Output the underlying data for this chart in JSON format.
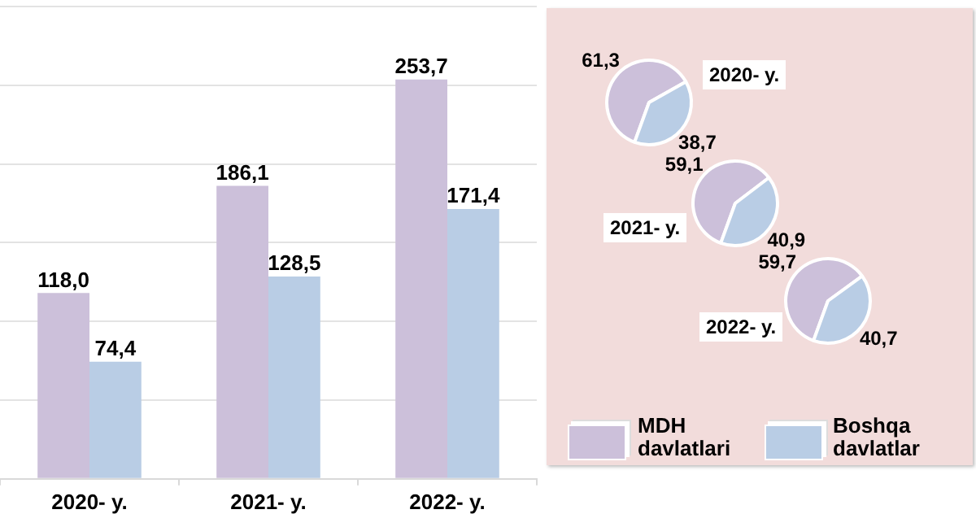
{
  "chart_data": [
    {
      "type": "bar",
      "categories": [
        "2020- y.",
        "2021- y.",
        "2022- y."
      ],
      "series": [
        {
          "name": "MDH davlatlari",
          "color": "#ccc0da",
          "values": [
            118.0,
            186.1,
            253.7
          ],
          "value_labels": [
            "118,0",
            "186,1",
            "253,7"
          ]
        },
        {
          "name": "Boshqa davlatlar",
          "color": "#b9cde5",
          "values": [
            74.4,
            128.5,
            171.4
          ],
          "value_labels": [
            "74,4",
            "128,5",
            "171,4"
          ]
        }
      ],
      "ylim": [
        0,
        300
      ],
      "yticks": [
        {
          "value": 0,
          "label": null
        },
        {
          "value": 50,
          "label": null
        },
        {
          "value": 100,
          "label": null
        },
        {
          "value": 150,
          "label": null
        },
        {
          "value": 200,
          "label": null
        },
        {
          "value": 250,
          "label": null
        },
        {
          "value": 300,
          "label": null
        }
      ],
      "tick_labels": "x",
      "grid": "y",
      "legend": "bottom right"
    },
    {
      "type": "pie",
      "title": "2020- y.",
      "categories": [
        null,
        null
      ],
      "values": [
        61.3,
        38.7
      ],
      "colors": [
        "#ccc0da",
        "#b9cde5"
      ],
      "value_labels": [
        "61,3",
        "38,7"
      ]
    },
    {
      "type": "pie",
      "title": "2021- y.",
      "categories": [
        null,
        null
      ],
      "values": [
        59.1,
        40.9
      ],
      "colors": [
        "#ccc0da",
        "#b9cde5"
      ],
      "value_labels": [
        "59,1",
        "40,9"
      ]
    },
    {
      "type": "pie",
      "title": "2022- y.",
      "categories": [
        null,
        null
      ],
      "values": [
        59.7,
        40.7
      ],
      "colors": [
        "#ccc0da",
        "#b9cde5"
      ],
      "value_labels": [
        "59,7",
        "40,7"
      ]
    }
  ]
}
